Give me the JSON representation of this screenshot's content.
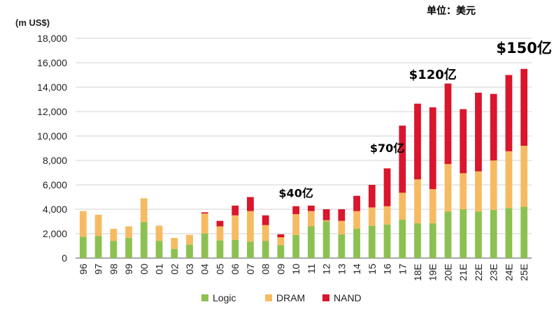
{
  "chart_data": {
    "type": "bar",
    "stacked": true,
    "unit_label": "(m US$)",
    "top_note": "单位：美元",
    "categories": [
      "96",
      "97",
      "98",
      "99",
      "00",
      "01",
      "02",
      "03",
      "04",
      "05",
      "06",
      "07",
      "08",
      "09",
      "10",
      "11",
      "12",
      "13",
      "14",
      "15",
      "16",
      "17",
      "18E",
      "19E",
      "20E",
      "21E",
      "22E",
      "23E",
      "24E",
      "25E"
    ],
    "series": [
      {
        "name": "Logic",
        "color": "#8cc152",
        "values": [
          1750,
          1800,
          1400,
          1650,
          2950,
          1400,
          750,
          1100,
          2000,
          1450,
          1500,
          1350,
          1400,
          1050,
          1900,
          2600,
          3000,
          1950,
          2400,
          2650,
          2750,
          3150,
          2850,
          2850,
          3800,
          4000,
          3800,
          3950,
          4100,
          4200
        ]
      },
      {
        "name": "DRAM",
        "color": "#f6bb62",
        "values": [
          2100,
          1750,
          1000,
          950,
          1950,
          1250,
          900,
          800,
          1650,
          1150,
          2000,
          2500,
          1300,
          650,
          1700,
          1250,
          100,
          1100,
          1450,
          1500,
          1500,
          2200,
          3600,
          2800,
          3900,
          2950,
          3300,
          4050,
          4650,
          5000
        ]
      },
      {
        "name": "NAND",
        "color": "#d9162c",
        "values": [
          0,
          0,
          0,
          0,
          0,
          0,
          0,
          0,
          100,
          450,
          800,
          1150,
          800,
          250,
          650,
          450,
          900,
          950,
          1250,
          1850,
          3100,
          5500,
          6200,
          6700,
          6600,
          5250,
          6450,
          5450,
          6250,
          6300
        ]
      }
    ],
    "ylim": [
      0,
      18000
    ],
    "yticks": [
      0,
      2000,
      4000,
      6000,
      8000,
      10000,
      12000,
      14000,
      16000,
      18000
    ],
    "ytick_labels": [
      "0",
      "2,000",
      "4,000",
      "6,000",
      "8,000",
      "10,000",
      "12,000",
      "14,000",
      "16,000",
      "18,000"
    ],
    "grid": "horizontal",
    "legend_position": "bottom",
    "annotations": [
      {
        "text": "$40亿",
        "category": "10",
        "y": 5000,
        "size": "small"
      },
      {
        "text": "$70亿",
        "category": "16",
        "y": 8700,
        "size": "small"
      },
      {
        "text": "$120亿",
        "category": "19E",
        "y": 14700,
        "size": "medium"
      },
      {
        "text": "$150亿",
        "category": "25E",
        "y": 16800,
        "size": "large"
      }
    ]
  }
}
